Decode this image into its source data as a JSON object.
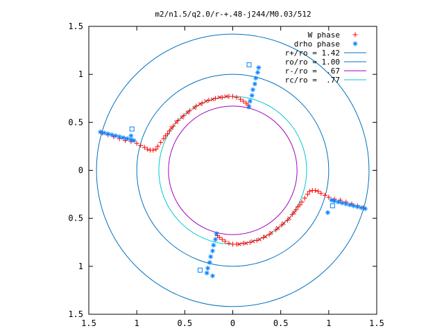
{
  "chart_data": {
    "type": "scatter",
    "title": "m2/n1.5/q2.0/r-+.48-j244/M0.03/512",
    "xlim": [
      -1.5,
      1.5
    ],
    "ylim": [
      -1.5,
      1.5
    ],
    "x_tick_labels": [
      "1.5",
      "1",
      "0.5",
      "0",
      "0.5",
      "1",
      "1.5"
    ],
    "y_tick_labels": [
      "1.5",
      "1",
      "0.5",
      "0",
      "0.5",
      "1",
      "1.5"
    ],
    "tick_values": [
      -1.5,
      -1,
      -0.5,
      0,
      0.5,
      1,
      1.5
    ],
    "grid": false,
    "legend_position": "top-right",
    "series": [
      {
        "name": "W phase",
        "marker": "+",
        "color": "#ff0000",
        "points": [
          [
            -1.36,
            0.39
          ],
          [
            -1.3,
            0.37
          ],
          [
            -1.24,
            0.35
          ],
          [
            -1.18,
            0.33
          ],
          [
            -1.12,
            0.31
          ],
          [
            -1.06,
            0.3
          ],
          [
            -1.0,
            0.28
          ],
          [
            -0.96,
            0.26
          ],
          [
            -0.92,
            0.24
          ],
          [
            -0.89,
            0.22
          ],
          [
            -0.86,
            0.21
          ],
          [
            -0.83,
            0.21
          ],
          [
            -0.8,
            0.22
          ],
          [
            -0.78,
            0.25
          ],
          [
            -0.75,
            0.29
          ],
          [
            -0.72,
            0.33
          ],
          [
            -0.7,
            0.36
          ],
          [
            -0.68,
            0.38
          ],
          [
            -0.66,
            0.41
          ],
          [
            -0.62,
            0.46
          ],
          [
            -0.57,
            0.52
          ],
          [
            -0.51,
            0.57
          ],
          [
            -0.45,
            0.62
          ],
          [
            -0.38,
            0.67
          ],
          [
            -0.32,
            0.7
          ],
          [
            -0.25,
            0.73
          ],
          [
            -0.18,
            0.75
          ],
          [
            -0.11,
            0.76
          ],
          [
            -0.04,
            0.77
          ],
          [
            0.0,
            0.77
          ],
          [
            0.04,
            0.76
          ],
          [
            0.08,
            0.74
          ],
          [
            0.11,
            0.72
          ],
          [
            0.14,
            0.7
          ],
          [
            0.16,
            0.68
          ],
          [
            1.36,
            -0.39
          ],
          [
            1.3,
            -0.37
          ],
          [
            1.24,
            -0.35
          ],
          [
            1.18,
            -0.33
          ],
          [
            1.12,
            -0.31
          ],
          [
            1.06,
            -0.3
          ],
          [
            1.0,
            -0.28
          ],
          [
            0.96,
            -0.26
          ],
          [
            0.92,
            -0.24
          ],
          [
            0.89,
            -0.22
          ],
          [
            0.86,
            -0.21
          ],
          [
            0.83,
            -0.21
          ],
          [
            0.8,
            -0.22
          ],
          [
            0.78,
            -0.25
          ],
          [
            0.75,
            -0.29
          ],
          [
            0.72,
            -0.33
          ],
          [
            0.7,
            -0.36
          ],
          [
            0.68,
            -0.38
          ],
          [
            0.66,
            -0.41
          ],
          [
            0.62,
            -0.46
          ],
          [
            0.57,
            -0.52
          ],
          [
            0.51,
            -0.57
          ],
          [
            0.45,
            -0.62
          ],
          [
            0.38,
            -0.67
          ],
          [
            0.32,
            -0.7
          ],
          [
            0.25,
            -0.73
          ],
          [
            0.18,
            -0.75
          ],
          [
            0.11,
            -0.76
          ],
          [
            0.04,
            -0.77
          ],
          [
            0.0,
            -0.77
          ],
          [
            -0.04,
            -0.76
          ],
          [
            -0.08,
            -0.74
          ],
          [
            -0.11,
            -0.72
          ],
          [
            -0.14,
            -0.7
          ],
          [
            -0.16,
            -0.68
          ]
        ]
      },
      {
        "name": "drho phase",
        "marker": "*",
        "color": "#0080ff",
        "points": [
          [
            -1.38,
            0.4
          ],
          [
            -1.34,
            0.39
          ],
          [
            -1.3,
            0.38
          ],
          [
            -1.26,
            0.37
          ],
          [
            -1.22,
            0.36
          ],
          [
            -1.18,
            0.35
          ],
          [
            -1.14,
            0.34
          ],
          [
            -1.1,
            0.33
          ],
          [
            -1.06,
            0.32
          ],
          [
            -1.03,
            0.31
          ],
          [
            -1.06,
            0.36
          ],
          [
            0.17,
            0.66
          ],
          [
            0.18,
            0.72
          ],
          [
            0.2,
            0.78
          ],
          [
            0.21,
            0.84
          ],
          [
            0.23,
            0.9
          ],
          [
            0.24,
            0.96
          ],
          [
            0.26,
            1.02
          ],
          [
            0.27,
            1.07
          ],
          [
            1.38,
            -0.4
          ],
          [
            1.34,
            -0.39
          ],
          [
            1.3,
            -0.38
          ],
          [
            1.26,
            -0.37
          ],
          [
            1.22,
            -0.36
          ],
          [
            1.18,
            -0.35
          ],
          [
            1.14,
            -0.34
          ],
          [
            1.1,
            -0.33
          ],
          [
            1.06,
            -0.32
          ],
          [
            1.03,
            -0.31
          ],
          [
            0.99,
            -0.44
          ],
          [
            -0.17,
            -0.66
          ],
          [
            -0.18,
            -0.72
          ],
          [
            -0.2,
            -0.78
          ],
          [
            -0.21,
            -0.84
          ],
          [
            -0.23,
            -0.9
          ],
          [
            -0.24,
            -0.96
          ],
          [
            -0.26,
            -1.02
          ],
          [
            -0.27,
            -1.07
          ],
          [
            -0.21,
            -1.1
          ]
        ]
      },
      {
        "name": "",
        "marker": "square",
        "color": "#0080ff",
        "points": [
          [
            -1.05,
            0.43
          ],
          [
            0.17,
            1.1
          ],
          [
            -0.34,
            -1.04
          ],
          [
            1.04,
            -0.37
          ]
        ]
      },
      {
        "name": "",
        "marker": "x",
        "color": "#ff0000",
        "points": [
          [
            -0.64,
            0.44
          ],
          [
            -0.59,
            0.5
          ],
          [
            -0.53,
            0.55
          ],
          [
            -0.47,
            0.6
          ],
          [
            -0.4,
            0.65
          ],
          [
            -0.34,
            0.69
          ],
          [
            -0.28,
            0.72
          ],
          [
            -0.21,
            0.74
          ],
          [
            -0.14,
            0.76
          ],
          [
            -0.07,
            0.77
          ],
          [
            0.64,
            -0.44
          ],
          [
            0.59,
            -0.5
          ],
          [
            0.53,
            -0.55
          ],
          [
            0.47,
            -0.6
          ],
          [
            0.4,
            -0.65
          ],
          [
            0.34,
            -0.69
          ],
          [
            0.28,
            -0.72
          ],
          [
            0.21,
            -0.74
          ],
          [
            0.14,
            -0.76
          ],
          [
            0.07,
            -0.77
          ]
        ]
      }
    ],
    "circles": [
      {
        "name": "r+/ro = 1.42",
        "radius": 1.42,
        "color": "#0070c0"
      },
      {
        "name": "ro/ro = 1.00",
        "radius": 1.0,
        "color": "#0070c0"
      },
      {
        "name": "r-/ro =  .67",
        "radius": 0.67,
        "color": "#a000c0"
      },
      {
        "name": "rc/ro =  .77",
        "radius": 0.77,
        "color": "#00c8d0"
      }
    ]
  }
}
